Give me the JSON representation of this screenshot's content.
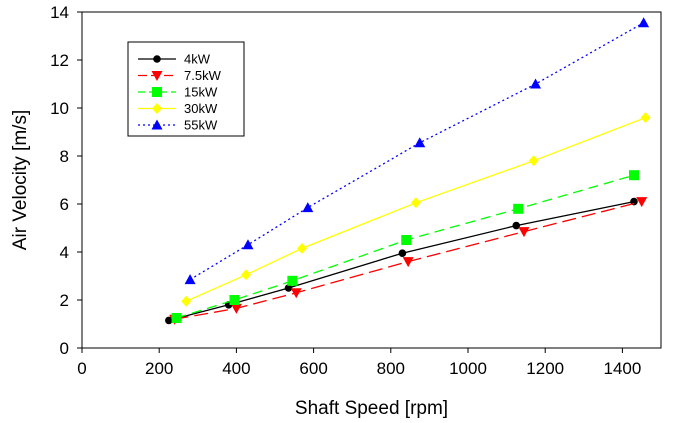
{
  "chart_data": {
    "type": "line",
    "title": "",
    "xlabel": "Shaft Speed [rpm]",
    "ylabel": "Air Velocity [m/s]",
    "xlim": [
      0,
      1500
    ],
    "ylim": [
      0,
      14
    ],
    "xticks": [
      0,
      200,
      400,
      600,
      800,
      1000,
      1200,
      1400
    ],
    "yticks": [
      0,
      2,
      4,
      6,
      8,
      10,
      12,
      14
    ],
    "grid": false,
    "legend_position": "top-left",
    "series": [
      {
        "name": "4kW",
        "color": "#000000",
        "marker": "circle",
        "line_style": "solid",
        "x": [
          225,
          380,
          535,
          830,
          1125,
          1430
        ],
        "y": [
          1.15,
          1.8,
          2.5,
          3.95,
          5.1,
          6.1
        ]
      },
      {
        "name": "7.5kW",
        "color": "#ff0000",
        "marker": "triangle-down",
        "line_style": "long-dash",
        "x": [
          240,
          400,
          555,
          845,
          1145,
          1450
        ],
        "y": [
          1.2,
          1.65,
          2.3,
          3.6,
          4.85,
          6.1
        ]
      },
      {
        "name": "15kW",
        "color": "#00ff00",
        "marker": "square",
        "line_style": "dash",
        "x": [
          245,
          395,
          545,
          840,
          1130,
          1430
        ],
        "y": [
          1.25,
          2.0,
          2.8,
          4.5,
          5.8,
          7.2
        ]
      },
      {
        "name": "30kW",
        "color": "#ffff00",
        "marker": "diamond",
        "line_style": "solid",
        "x": [
          270,
          425,
          570,
          865,
          1170,
          1460
        ],
        "y": [
          1.95,
          3.05,
          4.15,
          6.05,
          7.8,
          9.6
        ]
      },
      {
        "name": "55kW",
        "color": "#0000ff",
        "marker": "triangle-up",
        "line_style": "dotted",
        "x": [
          280,
          430,
          585,
          875,
          1175,
          1455
        ],
        "y": [
          2.85,
          4.3,
          5.85,
          8.55,
          11.0,
          13.55
        ]
      }
    ]
  }
}
